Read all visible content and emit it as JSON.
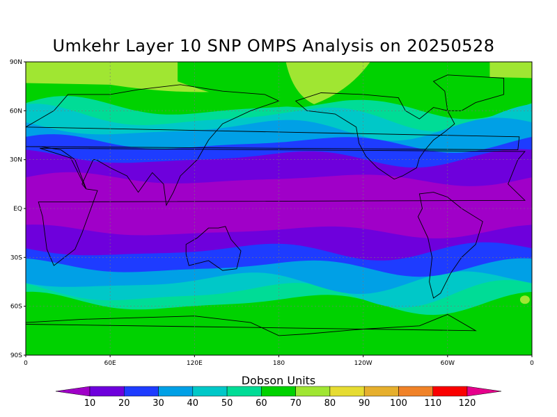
{
  "title": "Umkehr Layer 10 SNP OMPS Analysis on 20250528",
  "colorbar": {
    "title": "Dobson Units",
    "levels": [
      10,
      20,
      30,
      40,
      50,
      60,
      70,
      80,
      90,
      100,
      110,
      120
    ],
    "colors": [
      "#a000c8",
      "#6e00dc",
      "#1e3cff",
      "#00a0e6",
      "#00c8c8",
      "#00dc96",
      "#00d200",
      "#a0e632",
      "#e6dc32",
      "#e6af2d",
      "#f08228",
      "#fa0000",
      "#e6008c"
    ],
    "labels": [
      "10",
      "20",
      "30",
      "40",
      "50",
      "60",
      "70",
      "80",
      "90",
      "100",
      "110",
      "120"
    ]
  },
  "axes": {
    "lat_labels": [
      "90N",
      "60N",
      "30N",
      "EQ",
      "30S",
      "60S",
      "90S"
    ],
    "lon_labels": [
      "0",
      "60E",
      "120E",
      "180",
      "120W",
      "60W",
      "0"
    ]
  },
  "chart_data": {
    "type": "heatmap",
    "title": "Umkehr Layer 10 SNP OMPS Analysis on 20250528",
    "xlabel": "",
    "ylabel": "",
    "x_range": [
      0,
      360
    ],
    "y_range": [
      -90,
      90
    ],
    "units": "Dobson Units",
    "grid": true,
    "colorbar_levels": [
      10,
      20,
      30,
      40,
      50,
      60,
      70,
      80,
      90,
      100,
      110,
      120
    ],
    "zonal_band_class_from_north": [
      "70-80",
      "60-70",
      "50-60",
      "40-50",
      "30-40",
      "20-30",
      "10-20",
      "<10",
      "10-20",
      "20-30",
      "30-40",
      "40-50",
      "50-60",
      "60-70"
    ],
    "notes_visible": []
  }
}
